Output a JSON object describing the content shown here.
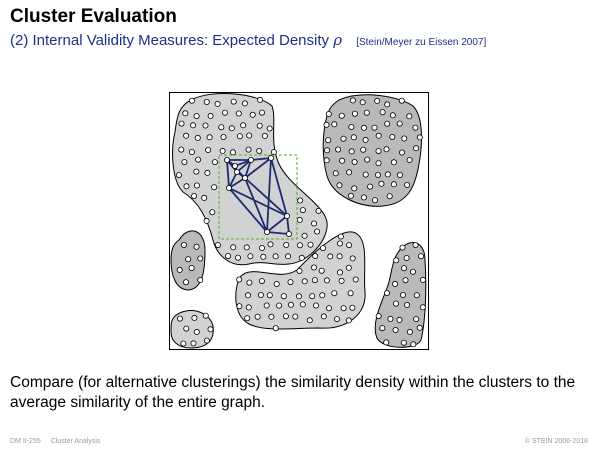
{
  "header": {
    "title": "Cluster Evaluation",
    "subtitle": "(2) Internal Validity Measures: Expected Density",
    "symbol": "ρ",
    "citation": "[Stein/Meyer zu Eissen 2007]"
  },
  "figure": {
    "colors": {
      "cluster_fill": "#d2d2d2",
      "cluster_stroke": "#000000",
      "graph_edges": "#1c2c6e",
      "selection_box": "#55aa33"
    }
  },
  "body": {
    "text": "Compare (for alternative clusterings) the similarity density within the clusters to the average similarity of the entire graph."
  },
  "footer": {
    "page": "DM II-255",
    "section": "Cluster Analysis",
    "copyright": "© STEIN 2006-2018"
  }
}
